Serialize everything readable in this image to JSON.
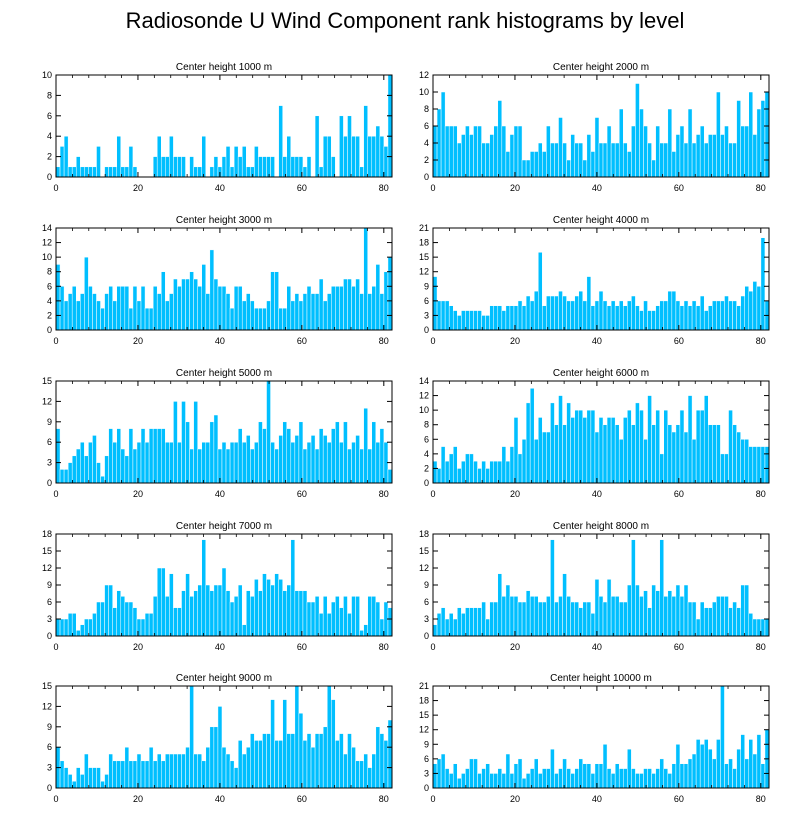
{
  "title": "Radiosonde U Wind Component rank histograms by level",
  "colors": {
    "bar": "#00bfff",
    "bar_edge": "#ffffff",
    "axis": "#000000"
  },
  "chart_data": [
    {
      "type": "bar",
      "title": "Center height 1000 m",
      "ylim": [
        0,
        10
      ],
      "yticks": [
        0,
        2,
        4,
        6,
        8,
        10
      ],
      "xticks": [
        0,
        20,
        40,
        60,
        80
      ],
      "xlim": [
        0,
        82
      ],
      "values": [
        1,
        3,
        4,
        1,
        1,
        2,
        1,
        1,
        1,
        1,
        3,
        0,
        1,
        1,
        1,
        4,
        1,
        1,
        3,
        1,
        0,
        0,
        0,
        0,
        2,
        4,
        2,
        2,
        4,
        2,
        2,
        2,
        0,
        2,
        1,
        1,
        4,
        0,
        1,
        2,
        1,
        2,
        3,
        1,
        3,
        2,
        3,
        1,
        1,
        3,
        2,
        2,
        2,
        2,
        0,
        7,
        2,
        4,
        2,
        2,
        2,
        1,
        2,
        0,
        6,
        1,
        4,
        4,
        2,
        0,
        6,
        4,
        6,
        4,
        4,
        1,
        7,
        4,
        4,
        5,
        4,
        3,
        10
      ]
    },
    {
      "type": "bar",
      "title": "Center height 2000 m",
      "ylim": [
        0,
        12
      ],
      "yticks": [
        0,
        2,
        4,
        6,
        8,
        10,
        12
      ],
      "xticks": [
        0,
        20,
        40,
        60,
        80
      ],
      "xlim": [
        0,
        82
      ],
      "values": [
        6,
        8,
        10,
        6,
        6,
        6,
        4,
        5,
        6,
        5,
        6,
        6,
        4,
        4,
        5,
        6,
        9,
        6,
        3,
        5,
        6,
        6,
        2,
        2,
        3,
        3,
        4,
        3,
        6,
        4,
        4,
        7,
        4,
        2,
        5,
        4,
        4,
        2,
        5,
        3,
        7,
        4,
        4,
        6,
        4,
        4,
        8,
        4,
        3,
        6,
        11,
        8,
        6,
        4,
        2,
        6,
        4,
        4,
        8,
        3,
        5,
        6,
        4,
        8,
        4,
        5,
        6,
        4,
        5,
        5,
        10,
        5,
        6,
        4,
        4,
        9,
        6,
        6,
        10,
        5,
        8,
        9,
        10
      ]
    },
    {
      "type": "bar",
      "title": "Center height 3000 m",
      "ylim": [
        0,
        14
      ],
      "yticks": [
        0,
        2,
        4,
        6,
        8,
        10,
        12,
        14
      ],
      "xticks": [
        0,
        20,
        40,
        60,
        80
      ],
      "xlim": [
        0,
        82
      ],
      "values": [
        9,
        6,
        4,
        5,
        6,
        4,
        5,
        10,
        6,
        5,
        4,
        3,
        5,
        6,
        4,
        6,
        6,
        6,
        3,
        6,
        4,
        6,
        3,
        3,
        6,
        5,
        8,
        4,
        5,
        7,
        6,
        7,
        7,
        8,
        7,
        6,
        9,
        5,
        11,
        7,
        6,
        6,
        5,
        3,
        6,
        6,
        4,
        5,
        4,
        3,
        3,
        3,
        4,
        8,
        8,
        3,
        3,
        6,
        4,
        5,
        4,
        5,
        6,
        5,
        5,
        7,
        4,
        5,
        6,
        6,
        6,
        7,
        7,
        6,
        7,
        5,
        14,
        5,
        6,
        9,
        5,
        8,
        10
      ]
    },
    {
      "type": "bar",
      "title": "Center height 4000 m",
      "ylim": [
        0,
        21
      ],
      "yticks": [
        0,
        3,
        6,
        9,
        12,
        15,
        18,
        21
      ],
      "xticks": [
        0,
        20,
        40,
        60,
        80
      ],
      "xlim": [
        0,
        82
      ],
      "values": [
        11,
        6,
        6,
        6,
        5,
        4,
        3,
        4,
        4,
        4,
        4,
        4,
        3,
        3,
        5,
        5,
        5,
        4,
        5,
        5,
        5,
        6,
        5,
        7,
        6,
        8,
        16,
        5,
        7,
        7,
        7,
        8,
        7,
        6,
        6,
        7,
        8,
        6,
        11,
        5,
        6,
        8,
        6,
        5,
        6,
        5,
        6,
        5,
        6,
        7,
        5,
        4,
        6,
        4,
        4,
        5,
        6,
        6,
        8,
        8,
        6,
        5,
        6,
        5,
        6,
        5,
        7,
        4,
        5,
        6,
        6,
        6,
        7,
        6,
        6,
        5,
        7,
        9,
        8,
        10,
        9,
        19,
        6
      ]
    },
    {
      "type": "bar",
      "title": "Center height 5000 m",
      "ylim": [
        0,
        15
      ],
      "yticks": [
        0,
        3,
        6,
        9,
        12,
        15
      ],
      "xticks": [
        0,
        20,
        40,
        60,
        80
      ],
      "xlim": [
        0,
        82
      ],
      "values": [
        8,
        2,
        2,
        3,
        4,
        5,
        6,
        4,
        6,
        7,
        3,
        1,
        4,
        8,
        6,
        8,
        5,
        4,
        8,
        5,
        6,
        8,
        6,
        8,
        8,
        8,
        8,
        6,
        6,
        12,
        6,
        12,
        9,
        5,
        12,
        5,
        6,
        6,
        9,
        10,
        5,
        6,
        5,
        6,
        6,
        8,
        6,
        7,
        5,
        6,
        9,
        8,
        15,
        6,
        5,
        7,
        9,
        8,
        6,
        7,
        9,
        5,
        6,
        7,
        5,
        8,
        7,
        6,
        8,
        9,
        6,
        9,
        5,
        6,
        7,
        5,
        11,
        5,
        9,
        6,
        8,
        6,
        2
      ]
    },
    {
      "type": "bar",
      "title": "Center height 6000 m",
      "ylim": [
        0,
        14
      ],
      "yticks": [
        0,
        2,
        4,
        6,
        8,
        10,
        12,
        14
      ],
      "xticks": [
        0,
        20,
        40,
        60,
        80
      ],
      "xlim": [
        0,
        82
      ],
      "values": [
        3,
        2,
        5,
        3,
        4,
        5,
        2,
        3,
        4,
        4,
        3,
        2,
        3,
        2,
        3,
        3,
        3,
        5,
        3,
        5,
        9,
        4,
        6,
        11,
        13,
        6,
        9,
        7,
        7,
        11,
        8,
        12,
        8,
        11,
        9,
        10,
        10,
        9,
        10,
        10,
        7,
        9,
        8,
        9,
        9,
        8,
        6,
        9,
        10,
        8,
        11,
        10,
        6,
        12,
        8,
        10,
        4,
        10,
        8,
        7,
        8,
        10,
        7,
        12,
        6,
        10,
        10,
        12,
        8,
        8,
        8,
        4,
        4,
        10,
        8,
        7,
        6,
        6,
        5,
        5,
        5,
        5,
        5
      ]
    },
    {
      "type": "bar",
      "title": "Center height 7000 m",
      "ylim": [
        0,
        18
      ],
      "yticks": [
        0,
        3,
        6,
        9,
        12,
        15,
        18
      ],
      "xticks": [
        0,
        20,
        40,
        60,
        80
      ],
      "xlim": [
        0,
        82
      ],
      "values": [
        3,
        3,
        3,
        4,
        4,
        1,
        2,
        3,
        3,
        4,
        6,
        6,
        9,
        9,
        5,
        8,
        7,
        6,
        6,
        5,
        3,
        3,
        4,
        4,
        7,
        12,
        12,
        7,
        11,
        5,
        5,
        8,
        11,
        7,
        8,
        9,
        17,
        9,
        8,
        9,
        9,
        12,
        8,
        6,
        7,
        9,
        2,
        8,
        7,
        10,
        8,
        11,
        10,
        9,
        11,
        10,
        8,
        9,
        17,
        8,
        8,
        8,
        6,
        6,
        7,
        4,
        7,
        4,
        6,
        7,
        5,
        7,
        4,
        7,
        7,
        1,
        2,
        7,
        7,
        6,
        3,
        6,
        5
      ]
    },
    {
      "type": "bar",
      "title": "Center height 8000 m",
      "ylim": [
        0,
        18
      ],
      "yticks": [
        0,
        3,
        6,
        9,
        12,
        15,
        18
      ],
      "xticks": [
        0,
        20,
        40,
        60,
        80
      ],
      "xlim": [
        0,
        82
      ],
      "values": [
        2,
        4,
        5,
        3,
        4,
        3,
        5,
        4,
        5,
        5,
        5,
        5,
        6,
        3,
        6,
        6,
        11,
        7,
        9,
        7,
        7,
        6,
        6,
        8,
        7,
        7,
        6,
        6,
        7,
        17,
        6,
        7,
        11,
        7,
        6,
        6,
        5,
        6,
        6,
        4,
        10,
        7,
        6,
        10,
        7,
        7,
        6,
        6,
        9,
        17,
        9,
        7,
        8,
        5,
        9,
        8,
        17,
        7,
        8,
        7,
        9,
        7,
        9,
        6,
        6,
        3,
        6,
        5,
        5,
        6,
        7,
        7,
        7,
        5,
        6,
        5,
        9,
        9,
        4,
        3,
        3,
        3,
        3
      ]
    },
    {
      "type": "bar",
      "title": "Center height 9000 m",
      "ylim": [
        0,
        15
      ],
      "yticks": [
        0,
        3,
        6,
        9,
        12,
        15
      ],
      "xticks": [
        0,
        20,
        40,
        60,
        80
      ],
      "xlim": [
        0,
        82
      ],
      "values": [
        6,
        4,
        3,
        2,
        1,
        3,
        2,
        5,
        3,
        3,
        3,
        1,
        2,
        5,
        4,
        4,
        4,
        6,
        4,
        4,
        5,
        4,
        4,
        6,
        4,
        5,
        4,
        5,
        5,
        5,
        5,
        5,
        6,
        15,
        5,
        5,
        4,
        6,
        9,
        9,
        12,
        6,
        5,
        4,
        3,
        7,
        5,
        6,
        8,
        7,
        7,
        8,
        8,
        13,
        7,
        7,
        13,
        8,
        8,
        15,
        11,
        7,
        8,
        6,
        8,
        8,
        9,
        15,
        13,
        7,
        8,
        5,
        8,
        6,
        4,
        4,
        5,
        3,
        5,
        9,
        8,
        7,
        10
      ]
    },
    {
      "type": "bar",
      "title": "Center height 10000 m",
      "ylim": [
        0,
        21
      ],
      "yticks": [
        0,
        3,
        6,
        9,
        12,
        15,
        18,
        21
      ],
      "xticks": [
        0,
        20,
        40,
        60,
        80
      ],
      "xlim": [
        0,
        82
      ],
      "values": [
        5,
        6,
        7,
        4,
        3,
        5,
        2,
        3,
        4,
        6,
        6,
        3,
        4,
        5,
        3,
        3,
        4,
        3,
        7,
        3,
        5,
        6,
        2,
        3,
        4,
        6,
        3,
        4,
        4,
        8,
        3,
        4,
        6,
        4,
        3,
        4,
        6,
        5,
        5,
        3,
        5,
        5,
        9,
        4,
        3,
        5,
        4,
        4,
        8,
        4,
        3,
        3,
        4,
        4,
        3,
        4,
        6,
        4,
        3,
        5,
        9,
        5,
        5,
        6,
        7,
        10,
        9,
        10,
        8,
        6,
        10,
        21,
        5,
        6,
        4,
        8,
        11,
        6,
        10,
        7,
        11,
        5,
        12
      ]
    }
  ]
}
